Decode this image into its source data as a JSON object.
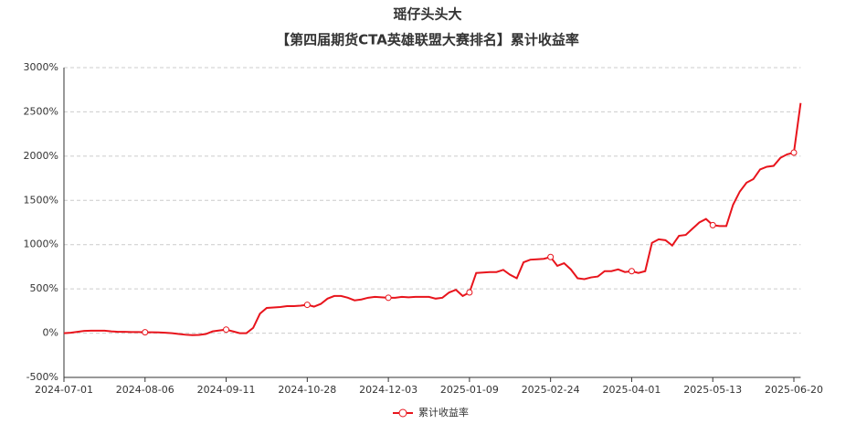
{
  "chart_data": {
    "type": "line",
    "title": "瑶仔头头大",
    "subtitle": "【第四届期货CTA英雄联盟大赛排名】累计收益率",
    "categories": [
      "2024-07-01",
      null,
      null,
      null,
      null,
      null,
      null,
      null,
      null,
      null,
      null,
      null,
      "2024-08-06",
      null,
      null,
      null,
      null,
      null,
      null,
      null,
      null,
      null,
      null,
      null,
      "2024-09-11",
      null,
      null,
      null,
      null,
      null,
      null,
      null,
      null,
      null,
      null,
      null,
      "2024-10-28",
      null,
      null,
      null,
      null,
      null,
      null,
      null,
      null,
      null,
      null,
      null,
      "2024-12-03",
      null,
      null,
      null,
      null,
      null,
      null,
      null,
      null,
      null,
      null,
      null,
      "2025-01-09",
      null,
      null,
      null,
      null,
      null,
      null,
      null,
      null,
      null,
      null,
      null,
      "2025-02-24",
      null,
      null,
      null,
      null,
      null,
      null,
      null,
      null,
      null,
      null,
      null,
      "2025-04-01",
      null,
      null,
      null,
      null,
      null,
      null,
      null,
      null,
      null,
      null,
      null,
      "2025-05-13",
      null,
      null,
      null,
      null,
      null,
      null,
      null,
      null,
      null,
      null,
      null,
      "2025-06-20",
      null
    ],
    "series": [
      {
        "name": "累计收益率",
        "color": "#e8141c",
        "values": [
          0,
          5,
          15,
          25,
          28,
          28,
          28,
          20,
          15,
          15,
          12,
          12,
          10,
          10,
          8,
          5,
          0,
          -10,
          -18,
          -22,
          -20,
          -10,
          20,
          30,
          40,
          20,
          0,
          0,
          60,
          220,
          285,
          290,
          295,
          305,
          305,
          310,
          320,
          300,
          330,
          390,
          420,
          420,
          400,
          370,
          380,
          400,
          410,
          405,
          400,
          400,
          410,
          405,
          410,
          410,
          410,
          390,
          400,
          460,
          490,
          420,
          460,
          680,
          685,
          690,
          690,
          715,
          660,
          620,
          800,
          830,
          835,
          840,
          860,
          760,
          790,
          720,
          620,
          610,
          630,
          640,
          700,
          700,
          720,
          690,
          700,
          680,
          700,
          1020,
          1060,
          1050,
          990,
          1100,
          1110,
          1180,
          1250,
          1290,
          1220,
          1210,
          1210,
          1450,
          1600,
          1700,
          1740,
          1850,
          1880,
          1890,
          1980,
          2020,
          2040,
          2600
        ]
      }
    ],
    "ylim": [
      -500,
      3000
    ],
    "yticks": [
      {
        "value": -500,
        "label": "-500%"
      },
      {
        "value": 0,
        "label": "0%"
      },
      {
        "value": 500,
        "label": "500%"
      },
      {
        "value": 1000,
        "label": "1000%"
      },
      {
        "value": 1500,
        "label": "1500%"
      },
      {
        "value": 2000,
        "label": "2000%"
      },
      {
        "value": 2500,
        "label": "2500%"
      },
      {
        "value": 3000,
        "label": "3000%"
      }
    ],
    "grid": true
  }
}
